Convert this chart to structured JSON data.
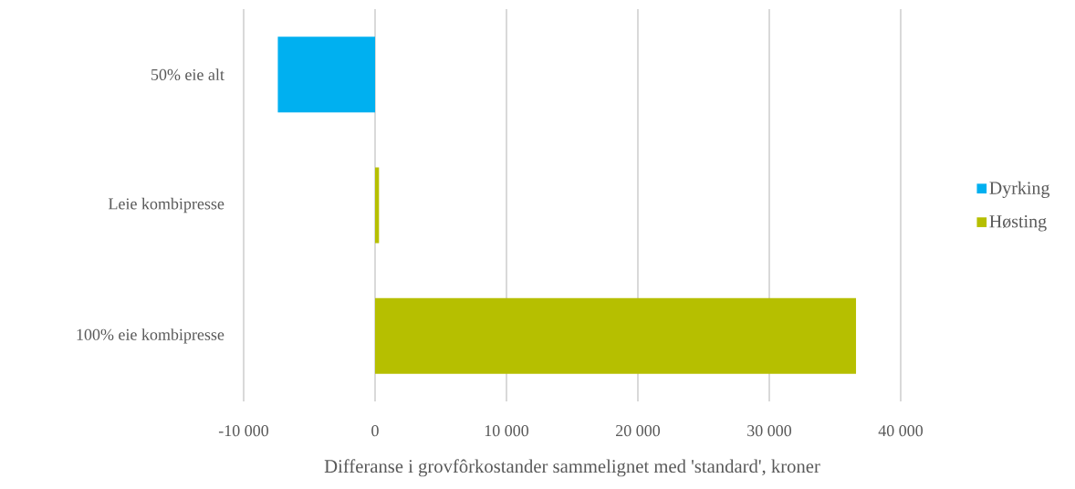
{
  "chart_data": {
    "type": "bar",
    "orientation": "horizontal",
    "categories": [
      "50% eie alt",
      "Leie kombipresse",
      "100% eie kombipresse"
    ],
    "series": [
      {
        "name": "Dyrking",
        "color": "#00b0f0",
        "values": [
          -7400,
          null,
          null
        ]
      },
      {
        "name": "Høsting",
        "color": "#b6bf00",
        "values": [
          null,
          300,
          36600
        ]
      }
    ],
    "xlim": [
      -10000,
      40000
    ],
    "xticks": [
      {
        "value": -10000,
        "label": "-10 000"
      },
      0,
      {
        "value": 10000,
        "label": "10 000"
      },
      {
        "value": 20000,
        "label": "20 000"
      },
      {
        "value": 30000,
        "label": "30 000"
      },
      {
        "value": 40000,
        "label": "40 000"
      }
    ],
    "xlabel": "Differanse i grovfôrkostander sammelignet med 'standard', kroner",
    "grid": "x",
    "legend": "right"
  }
}
